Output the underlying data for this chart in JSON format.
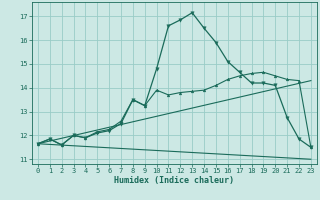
{
  "xlabel": "Humidex (Indice chaleur)",
  "bg_color": "#cce8e4",
  "grid_color": "#99ccc7",
  "line_color": "#1a6b5a",
  "xlim": [
    -0.5,
    23.5
  ],
  "ylim": [
    10.8,
    17.6
  ],
  "xticks": [
    0,
    1,
    2,
    3,
    4,
    5,
    6,
    7,
    8,
    9,
    10,
    11,
    12,
    13,
    14,
    15,
    16,
    17,
    18,
    19,
    20,
    21,
    22,
    23
  ],
  "yticks": [
    11,
    12,
    13,
    14,
    15,
    16,
    17
  ],
  "curve1_x": [
    0,
    1,
    2,
    3,
    4,
    5,
    6,
    7,
    8,
    9,
    10,
    11,
    12,
    13,
    14,
    15,
    16,
    17,
    18,
    19,
    20,
    21,
    22,
    23
  ],
  "curve1_y": [
    11.65,
    11.85,
    11.6,
    12.0,
    11.9,
    12.1,
    12.2,
    12.5,
    13.5,
    13.25,
    14.8,
    16.6,
    16.85,
    17.15,
    16.5,
    15.9,
    15.1,
    14.65,
    14.2,
    14.2,
    14.1,
    12.75,
    11.85,
    11.5
  ],
  "curve2_x": [
    0,
    1,
    2,
    3,
    4,
    5,
    6,
    7,
    8,
    9,
    10,
    11,
    12,
    13,
    14,
    15,
    16,
    17,
    18,
    19,
    20,
    21,
    22,
    23
  ],
  "curve2_y": [
    11.65,
    11.85,
    11.6,
    12.0,
    11.9,
    12.15,
    12.25,
    12.6,
    13.5,
    13.25,
    13.9,
    13.7,
    13.8,
    13.85,
    13.9,
    14.1,
    14.35,
    14.5,
    14.6,
    14.65,
    14.5,
    14.35,
    14.3,
    11.5
  ],
  "line1_x": [
    0,
    23
  ],
  "line1_y": [
    11.65,
    14.3
  ],
  "line2_x": [
    0,
    23
  ],
  "line2_y": [
    11.65,
    11.0
  ]
}
